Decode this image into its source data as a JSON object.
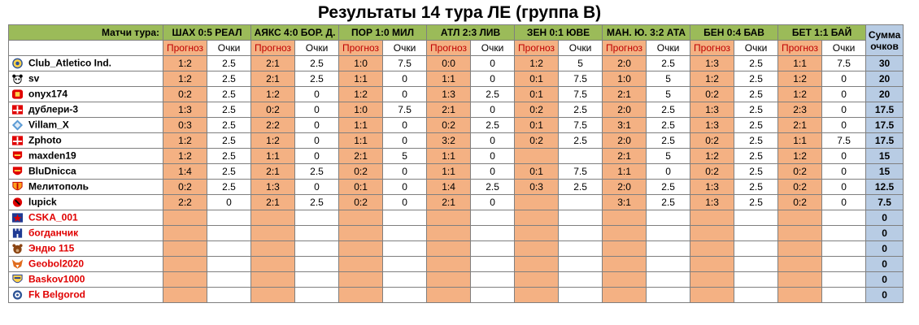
{
  "title": "Результаты 14 тура ЛЕ (группа В)",
  "header": {
    "matches_label": "Матчи тура:",
    "matches": [
      "ШАХ 0:5 РЕАЛ",
      "АЯКС 4:0 БОР. Д.",
      "ПОР 1:0 МИЛ",
      "АТЛ 2:3 ЛИВ",
      "ЗЕН 0:1 ЮВЕ",
      "МАН. Ю. 3:2 АТА",
      "БЕН 0:4 БАВ",
      "БЕТ 1:1 БАЙ"
    ],
    "sum_label_1": "Сумма",
    "sum_label_2": "очков",
    "forecast_label": "Прогноз",
    "points_label": "Очки"
  },
  "colors": {
    "header_green": "#9bbb59",
    "forecast_orange": "#f4b183",
    "sum_blue": "#b8cce4",
    "inactive_red": "#e00000"
  },
  "rows": [
    {
      "name": "Club_Atletico Ind.",
      "icon": "club-crest-icon",
      "inactive": false,
      "cells": [
        [
          "1:2",
          "2.5"
        ],
        [
          "2:1",
          "2.5"
        ],
        [
          "1:0",
          "7.5"
        ],
        [
          "0:0",
          "0"
        ],
        [
          "1:2",
          "5"
        ],
        [
          "2:0",
          "2.5"
        ],
        [
          "1:3",
          "2.5"
        ],
        [
          "1:1",
          "7.5"
        ]
      ],
      "total": "30"
    },
    {
      "name": "sv",
      "icon": "panda-icon",
      "inactive": false,
      "cells": [
        [
          "1:2",
          "2.5"
        ],
        [
          "2:1",
          "2.5"
        ],
        [
          "1:1",
          "0"
        ],
        [
          "1:1",
          "0"
        ],
        [
          "0:1",
          "7.5"
        ],
        [
          "1:0",
          "5"
        ],
        [
          "1:2",
          "2.5"
        ],
        [
          "1:2",
          "0"
        ]
      ],
      "total": "20"
    },
    {
      "name": "onyx174",
      "icon": "red-badge-icon",
      "inactive": false,
      "cells": [
        [
          "0:2",
          "2.5"
        ],
        [
          "1:2",
          "0"
        ],
        [
          "1:2",
          "0"
        ],
        [
          "1:3",
          "2.5"
        ],
        [
          "0:1",
          "7.5"
        ],
        [
          "2:1",
          "5"
        ],
        [
          "0:2",
          "2.5"
        ],
        [
          "1:2",
          "0"
        ]
      ],
      "total": "20"
    },
    {
      "name": "дублери-3",
      "icon": "spartak-icon",
      "inactive": false,
      "cells": [
        [
          "1:3",
          "2.5"
        ],
        [
          "0:2",
          "0"
        ],
        [
          "1:0",
          "7.5"
        ],
        [
          "2:1",
          "0"
        ],
        [
          "0:2",
          "2.5"
        ],
        [
          "2:0",
          "2.5"
        ],
        [
          "1:3",
          "2.5"
        ],
        [
          "2:3",
          "0"
        ]
      ],
      "total": "17.5"
    },
    {
      "name": "Villam_X",
      "icon": "diamond-icon",
      "inactive": false,
      "cells": [
        [
          "0:3",
          "2.5"
        ],
        [
          "2:2",
          "0"
        ],
        [
          "1:1",
          "0"
        ],
        [
          "0:2",
          "2.5"
        ],
        [
          "0:1",
          "7.5"
        ],
        [
          "3:1",
          "2.5"
        ],
        [
          "1:3",
          "2.5"
        ],
        [
          "2:1",
          "0"
        ]
      ],
      "total": "17.5"
    },
    {
      "name": "Zphoto",
      "icon": "spartak-icon",
      "inactive": false,
      "cells": [
        [
          "1:2",
          "2.5"
        ],
        [
          "1:2",
          "0"
        ],
        [
          "1:1",
          "0"
        ],
        [
          "3:2",
          "0"
        ],
        [
          "0:2",
          "2.5"
        ],
        [
          "2:0",
          "2.5"
        ],
        [
          "0:2",
          "2.5"
        ],
        [
          "1:1",
          "7.5"
        ]
      ],
      "total": "17.5"
    },
    {
      "name": "maxden19",
      "icon": "cannon-crest-icon",
      "inactive": false,
      "cells": [
        [
          "1:2",
          "2.5"
        ],
        [
          "1:1",
          "0"
        ],
        [
          "2:1",
          "5"
        ],
        [
          "1:1",
          "0"
        ],
        [
          "",
          ""
        ],
        [
          "2:1",
          "5"
        ],
        [
          "1:2",
          "2.5"
        ],
        [
          "1:2",
          "0"
        ]
      ],
      "total": "15"
    },
    {
      "name": "BluDnicca",
      "icon": "cannon-crest-icon",
      "inactive": false,
      "cells": [
        [
          "1:4",
          "2.5"
        ],
        [
          "2:1",
          "2.5"
        ],
        [
          "0:2",
          "0"
        ],
        [
          "1:1",
          "0"
        ],
        [
          "0:1",
          "7.5"
        ],
        [
          "1:1",
          "0"
        ],
        [
          "0:2",
          "2.5"
        ],
        [
          "0:2",
          "0"
        ]
      ],
      "total": "15"
    },
    {
      "name": "Мелитополь",
      "icon": "shield-crest-icon",
      "inactive": false,
      "cells": [
        [
          "0:2",
          "2.5"
        ],
        [
          "1:3",
          "0"
        ],
        [
          "0:1",
          "0"
        ],
        [
          "1:4",
          "2.5"
        ],
        [
          "0:3",
          "2.5"
        ],
        [
          "2:0",
          "2.5"
        ],
        [
          "1:3",
          "2.5"
        ],
        [
          "0:2",
          "0"
        ]
      ],
      "total": "12.5"
    },
    {
      "name": "lupick",
      "icon": "red-ball-icon",
      "inactive": false,
      "cells": [
        [
          "2:2",
          "0"
        ],
        [
          "2:1",
          "2.5"
        ],
        [
          "0:2",
          "0"
        ],
        [
          "2:1",
          "0"
        ],
        [
          "",
          ""
        ],
        [
          "3:1",
          "2.5"
        ],
        [
          "1:3",
          "2.5"
        ],
        [
          "0:2",
          "0"
        ]
      ],
      "total": "7.5"
    },
    {
      "name": "CSKA_001",
      "icon": "cska-icon",
      "inactive": true,
      "cells": [],
      "total": "0"
    },
    {
      "name": "богданчик",
      "icon": "castle-icon",
      "inactive": true,
      "cells": [],
      "total": "0"
    },
    {
      "name": "Эндю 115",
      "icon": "bear-icon",
      "inactive": true,
      "cells": [],
      "total": "0"
    },
    {
      "name": "Geobol2020",
      "icon": "fox-icon",
      "inactive": true,
      "cells": [],
      "total": "0"
    },
    {
      "name": "Baskov1000",
      "icon": "yellow-crest-icon",
      "inactive": true,
      "cells": [],
      "total": "0"
    },
    {
      "name": "Fk Belgorod",
      "icon": "round-crest-icon",
      "inactive": true,
      "cells": [],
      "total": "0"
    }
  ]
}
